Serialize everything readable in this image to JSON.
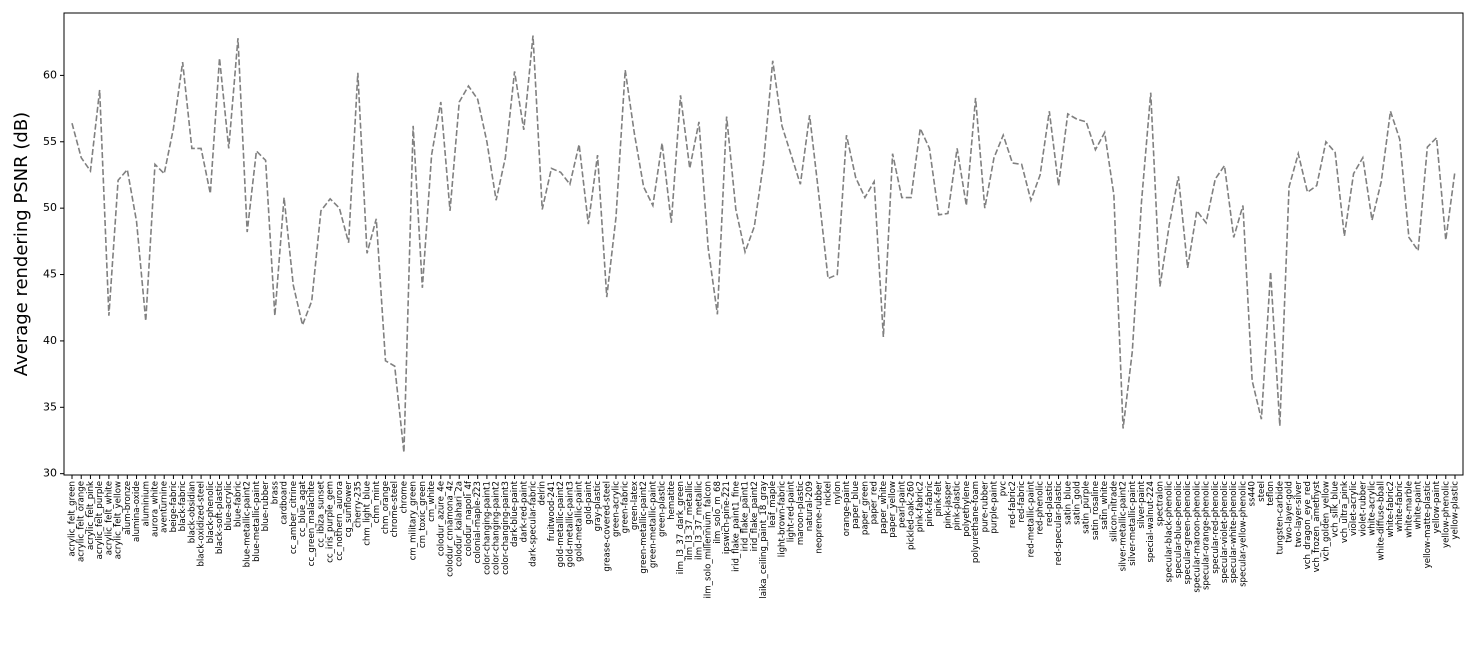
{
  "chart_data": {
    "type": "line",
    "y_label": "Average rendering PSNR (dB)",
    "categories": [
      "acrylic_felt_green",
      "acrylic_felt_orange",
      "acrylic_felt_pink",
      "acrylic_felt_purple",
      "acrylic_felt_white",
      "acrylic_felt_yellow",
      "alum-bronze",
      "alumina-oxide",
      "aluminium",
      "aurora_white",
      "aventurnine",
      "beige-fabric",
      "black-fabric",
      "black-obsidian",
      "black-oxidized-steel",
      "black-phenolic",
      "black-soft-plastic",
      "blue-acrylic",
      "blue-fabric",
      "blue-metallic-paint2",
      "blue-metallic-paint",
      "blue-rubber",
      "brass",
      "cardboard",
      "cc_amber_citrine",
      "cc_blue_agat",
      "cc_green_malachite",
      "cc_ibiza_sunset",
      "cc_iris_purple_gem",
      "cc_nothern_aurora",
      "cg_sunflower",
      "cherry-235",
      "chm_light_blue",
      "chm_mint",
      "chm_orange",
      "chrome-steel",
      "chrome",
      "cm_military_green",
      "cm_toxic_green",
      "cm_white",
      "colodur_azure_4e",
      "colodur_cnnamona_4z",
      "colodur_kalahari_2a",
      "colodur_napoli_4f",
      "colonial-maple-223",
      "color-changing-paint1",
      "color-changing-paint2",
      "color-changing-paint3",
      "dark-blue-paint",
      "dark-red-paint",
      "dark-specular-fabric",
      "delrin",
      "fruitwood-241",
      "gold-metallic-paint2",
      "gold-metallic-paint3",
      "gold-metallic-paint",
      "gold-paint",
      "gray-plastic",
      "grease-covered-steel",
      "green-acrylic",
      "green-fabric",
      "green-latex",
      "green-metallic-paint2",
      "green-metallic-paint",
      "green-plastic",
      "hematite",
      "ilm_l3_37_dark_green",
      "ilm_l3_37_metallic",
      "ilm_l3_37_metallic",
      "ilm_solo_millennium_falcon",
      "ilm_solo_m_68",
      "ipswich-pine-221",
      "irid_flake_paint1_fine",
      "irid_flake_paint1",
      "irid_flake_paint2",
      "laika_ceiling_paint_18_gray",
      "leaf_maple",
      "light-brown-fabric",
      "light-red-paint",
      "maroon-plastic",
      "natural-209",
      "neoprene-rubber",
      "nickel",
      "nylon",
      "orange-paint",
      "paper_blue",
      "paper_green",
      "paper_red",
      "paper_white",
      "paper_yellow",
      "pearl-paint",
      "pickled-oak-260",
      "pink-fabric2",
      "pink-fabric",
      "pink-felt",
      "pink-jasper",
      "pink-plastic",
      "polyethylene",
      "polyurethane-foam",
      "pure-rubber",
      "purple-paint",
      "pvc",
      "red-fabric2",
      "red-fabric",
      "red-metallic-paint",
      "red-phenolic",
      "red-plastic",
      "red-specular-plastic",
      "satin_blue",
      "satin_gold",
      "satin_purple",
      "satin_rosaline",
      "satin_white",
      "silicon-nitrade",
      "silver-metallic-paint2",
      "silver-metallic-paint",
      "silver-paint",
      "special-walnut-224",
      "spectralon",
      "specular-black-phenolic",
      "specular-blue-phenolic",
      "specular-green-phenolic",
      "specular-maroon-phenolic",
      "specular-orange-phenolic",
      "specular-red-phenolic",
      "specular-violet-phenolic",
      "specular-white-phenolic",
      "specular-yellow-phenolic",
      "ss440",
      "steel",
      "teflon",
      "tungsten-carbide",
      "two-layer-gold",
      "two-layer-silver",
      "vch_dragon_eye_red",
      "vch_frozen_amethyst",
      "vch_golden_yellow",
      "vch_silk_blue",
      "vch_ultra_pink",
      "violet-acrylic",
      "violet-rubber",
      "white-acrylic",
      "white-diffuse-bball",
      "white-fabric2",
      "white-fabric",
      "white-marble",
      "white-paint",
      "yellow-matte-plastic",
      "yellow-paint",
      "yellow-phenolic",
      "yellow-plastic"
    ],
    "values": [
      56.4,
      53.8,
      52.8,
      58.9,
      41.9,
      52.1,
      52.9,
      49.0,
      41.5,
      53.3,
      52.6,
      56.0,
      61.0,
      54.5,
      54.5,
      51.1,
      61.3,
      54.5,
      62.8,
      48.2,
      54.3,
      53.6,
      41.9,
      50.8,
      44.2,
      41.2,
      43.0,
      49.8,
      50.7,
      50.0,
      47.4,
      60.2,
      46.6,
      49.2,
      38.5,
      38.1,
      31.6,
      56.2,
      44.0,
      54.0,
      58.0,
      49.8,
      58.0,
      59.2,
      58.2,
      55.0,
      50.6,
      53.8,
      60.3,
      55.9,
      63.0,
      49.9,
      53.0,
      52.7,
      51.8,
      54.8,
      48.8,
      54.0,
      43.3,
      49.3,
      60.4,
      55.6,
      51.6,
      50.2,
      54.9,
      48.9,
      58.5,
      53.0,
      56.5,
      47.0,
      42.0,
      56.9,
      49.9,
      46.7,
      48.6,
      53.4,
      61.1,
      56.2,
      54.0,
      51.8,
      57.0,
      51.0,
      44.7,
      45.0,
      55.5,
      52.3,
      50.8,
      52.0,
      40.3,
      54.1,
      50.8,
      50.8,
      56.0,
      54.5,
      49.5,
      49.6,
      54.5,
      50.2,
      58.3,
      50.0,
      53.8,
      55.5,
      53.4,
      53.3,
      50.6,
      52.5,
      57.3,
      51.7,
      57.1,
      56.7,
      56.5,
      54.4,
      55.7,
      51.0,
      33.4,
      39.2,
      50.5,
      58.7,
      44.1,
      48.7,
      52.4,
      45.5,
      49.8,
      48.9,
      52.2,
      53.2,
      47.8,
      50.2,
      37.0,
      34.1,
      45.2,
      33.6,
      51.6,
      54.1,
      51.2,
      51.7,
      55.0,
      54.2,
      47.9,
      52.6,
      53.8,
      49.1,
      52.0,
      57.3,
      55.2,
      47.8,
      46.8,
      54.6,
      55.3,
      47.6,
      52.8
    ],
    "color": "#808080",
    "line_style": "dashed",
    "ylim": [
      29.9,
      64.7
    ],
    "yticks": [
      30,
      35,
      40,
      45,
      50,
      55,
      60
    ]
  }
}
